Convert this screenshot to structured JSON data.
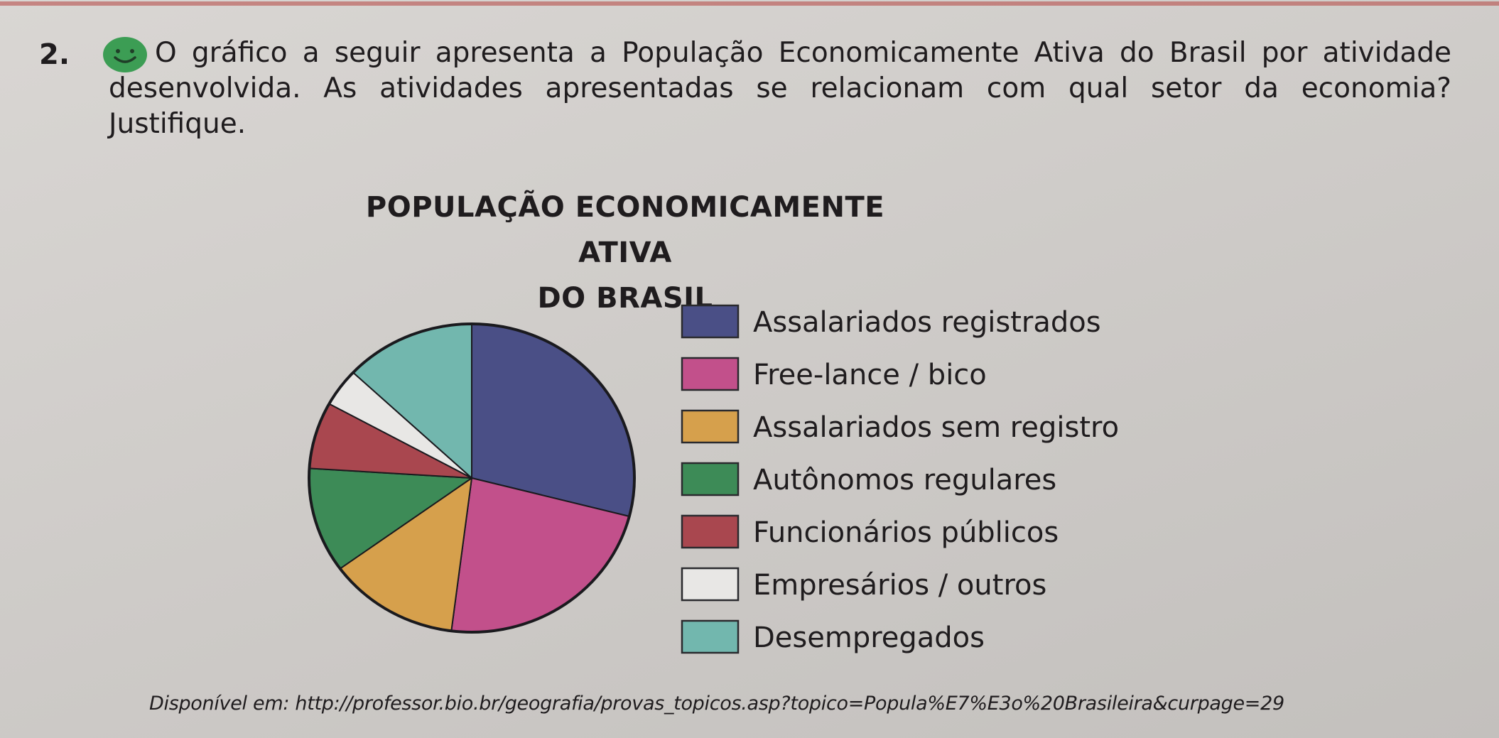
{
  "question": {
    "number": "2.",
    "icon": "smile-icon",
    "text": "O gráfico a seguir apresenta a População Economicamente Ativa do Brasil por atividade desenvolvida. As atividades apresentadas se relacionam com qual setor da economia? Justifique."
  },
  "source": "Disponível em: http://professor.bio.br/geografia/provas_topicos.asp?topico=Popula%E7%E3o%20Brasileira&curpage=29",
  "chart_data": {
    "type": "pie",
    "title": "POPULAÇÃO ECONOMICAMENTE ATIVA DO BRASIL",
    "title_lines": [
      "POPULAÇÃO ECONOMICAMENTE ATIVA",
      "DO BRASIL"
    ],
    "legend_position": "right",
    "labels": [
      "Assalariados registrados",
      "Free-lance / bico",
      "Assalariados sem registro",
      "Autônomos regulares",
      "Funcionários públicos",
      "Empresários / outros",
      "Desempregados"
    ],
    "values": [
      29,
      23,
      13,
      11,
      7,
      4,
      13
    ],
    "colors": [
      "#4a4f86",
      "#c2508b",
      "#d6a04c",
      "#3d8b57",
      "#a9474f",
      "#e8e7e5",
      "#72b7ae"
    ]
  }
}
